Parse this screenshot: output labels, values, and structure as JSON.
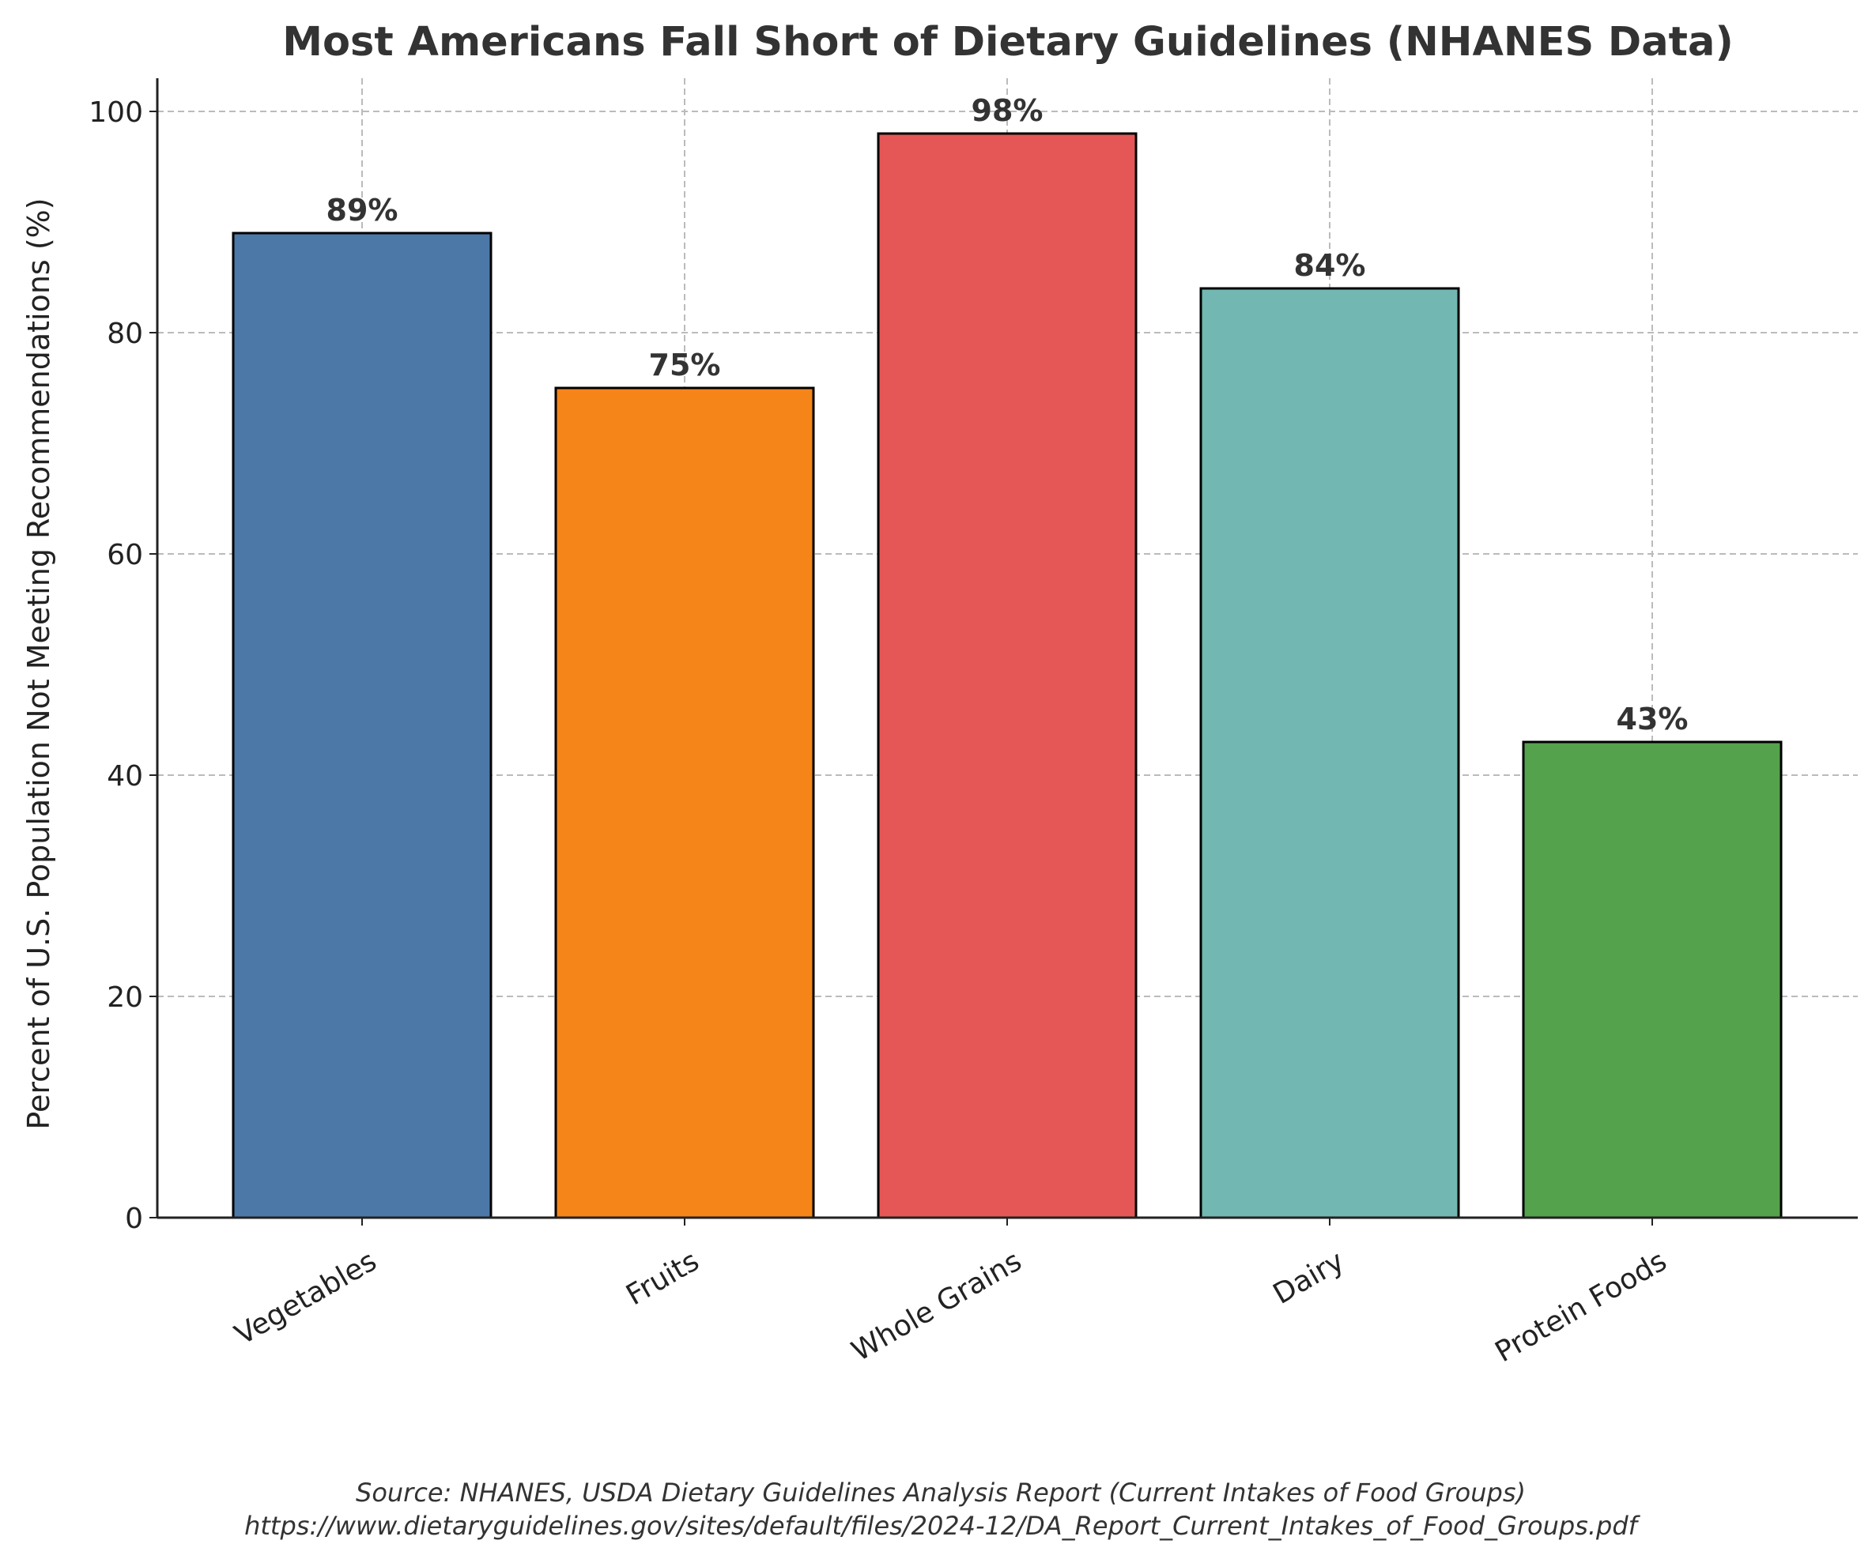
{
  "chart_data": {
    "type": "bar",
    "title": "Most Americans Fall Short of Dietary Guidelines (NHANES Data)",
    "xlabel": "",
    "ylabel": "Percent of U.S. Population Not Meeting Recommendations (%)",
    "categories": [
      "Vegetables",
      "Fruits",
      "Whole Grains",
      "Dairy",
      "Protein Foods"
    ],
    "values": [
      89,
      75,
      98,
      84,
      43
    ],
    "data_labels": [
      "89%",
      "75%",
      "98%",
      "84%",
      "43%"
    ],
    "colors": [
      "#4C78A8",
      "#F58518",
      "#E45756",
      "#72B7B2",
      "#54A24B"
    ],
    "ylim": [
      0,
      103
    ],
    "yticks": [
      0,
      20,
      40,
      60,
      80,
      100
    ],
    "ytick_labels": [
      "0",
      "20",
      "40",
      "60",
      "80",
      "100"
    ],
    "grid": true,
    "legend": "none"
  },
  "source": {
    "line1": "Source: NHANES, USDA Dietary Guidelines Analysis Report (Current Intakes of Food Groups)",
    "line2": "https://www.dietaryguidelines.gov/sites/default/files/2024-12/DA_Report_Current_Intakes_of_Food_Groups.pdf"
  }
}
